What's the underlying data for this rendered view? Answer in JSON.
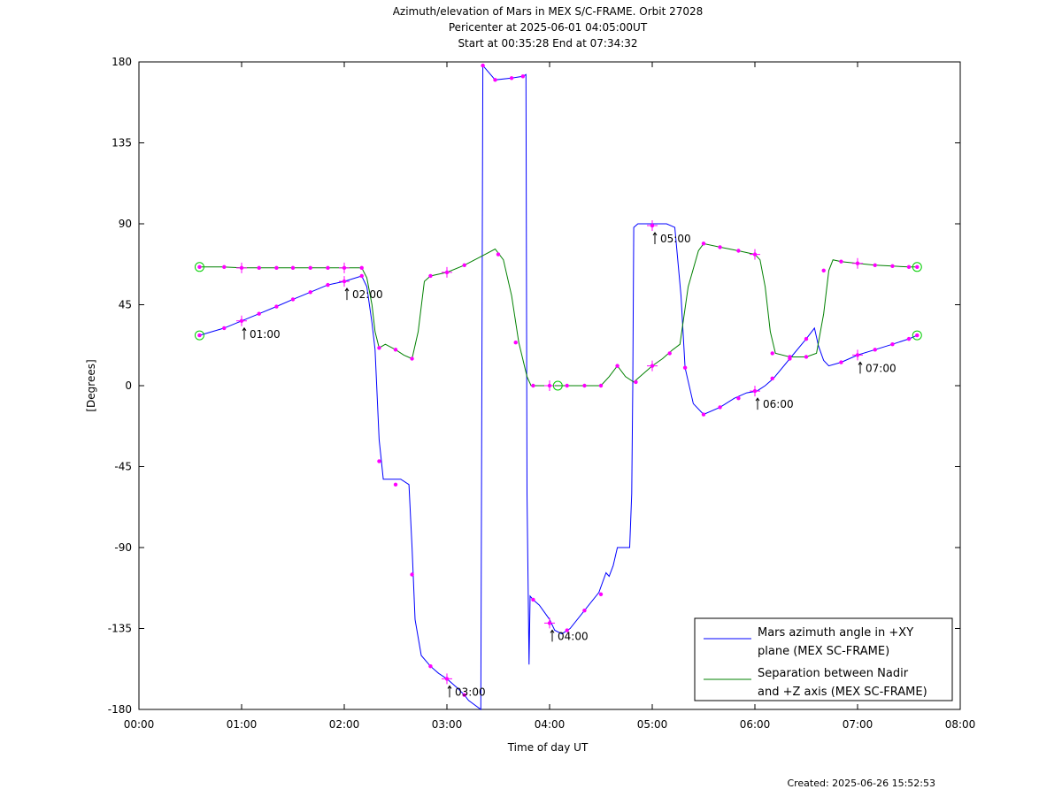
{
  "chart_data": {
    "type": "line",
    "title_lines": [
      "Azimuth/elevation of Mars in MEX S/C-FRAME.  Orbit 27028",
      "Pericenter at 2025-06-01 04:05:00UT",
      "Start at 00:35:28 End at 07:34:32"
    ],
    "xlabel": "Time of day UT",
    "ylabel": "[Degrees]",
    "xlim": [
      0,
      8
    ],
    "ylim": [
      -180,
      180
    ],
    "x_ticks": [
      {
        "v": 0,
        "label": "00:00"
      },
      {
        "v": 1,
        "label": "01:00"
      },
      {
        "v": 2,
        "label": "02:00"
      },
      {
        "v": 3,
        "label": "03:00"
      },
      {
        "v": 4,
        "label": "04:00"
      },
      {
        "v": 5,
        "label": "05:00"
      },
      {
        "v": 6,
        "label": "06:00"
      },
      {
        "v": 7,
        "label": "07:00"
      },
      {
        "v": 8,
        "label": "08:00"
      }
    ],
    "y_ticks": [
      {
        "v": 180,
        "label": "180"
      },
      {
        "v": 135,
        "label": "135"
      },
      {
        "v": 90,
        "label": "90"
      },
      {
        "v": 45,
        "label": "45"
      },
      {
        "v": 0,
        "label": "0"
      },
      {
        "v": -45,
        "label": "-45"
      },
      {
        "v": -90,
        "label": "-90"
      },
      {
        "v": -135,
        "label": "-135"
      },
      {
        "v": -180,
        "label": "-180"
      }
    ],
    "legend_position": "bottom-right",
    "series": [
      {
        "name": "Mars azimuth angle in +XY plane (MEX SC-FRAME)",
        "legend_lines": [
          "Mars azimuth angle in +XY",
          "plane (MEX SC-FRAME)"
        ],
        "color": "#0000ff",
        "points": [
          [
            0.59,
            28
          ],
          [
            0.83,
            32
          ],
          [
            1.0,
            36
          ],
          [
            1.17,
            40
          ],
          [
            1.34,
            44
          ],
          [
            1.5,
            48
          ],
          [
            1.67,
            52
          ],
          [
            1.84,
            56
          ],
          [
            2.0,
            58
          ],
          [
            2.17,
            61
          ],
          [
            2.22,
            55
          ],
          [
            2.27,
            35
          ],
          [
            2.3,
            20
          ],
          [
            2.34,
            -30
          ],
          [
            2.38,
            -52
          ],
          [
            2.55,
            -52
          ],
          [
            2.63,
            -55
          ],
          [
            2.66,
            -90
          ],
          [
            2.69,
            -130
          ],
          [
            2.75,
            -150
          ],
          [
            2.84,
            -156
          ],
          [
            2.92,
            -160
          ],
          [
            3.0,
            -163
          ],
          [
            3.1,
            -168
          ],
          [
            3.17,
            -172
          ],
          [
            3.21,
            -175
          ],
          [
            3.33,
            -180
          ],
          [
            3.35,
            178
          ],
          [
            3.47,
            170
          ],
          [
            3.63,
            171
          ],
          [
            3.74,
            172
          ],
          [
            3.77,
            173
          ],
          [
            3.78,
            -60
          ],
          [
            3.8,
            -155
          ],
          [
            3.81,
            -117
          ],
          [
            3.84,
            -119
          ],
          [
            3.9,
            -122
          ],
          [
            4.0,
            -130
          ],
          [
            4.05,
            -136
          ],
          [
            4.12,
            -138
          ],
          [
            4.2,
            -135
          ],
          [
            4.34,
            -125
          ],
          [
            4.48,
            -115
          ],
          [
            4.55,
            -104
          ],
          [
            4.58,
            -106
          ],
          [
            4.62,
            -100
          ],
          [
            4.66,
            -90
          ],
          [
            4.78,
            -90
          ],
          [
            4.8,
            -60
          ],
          [
            4.81,
            0
          ],
          [
            4.82,
            88
          ],
          [
            4.86,
            90
          ],
          [
            5.0,
            90
          ],
          [
            5.14,
            90
          ],
          [
            5.22,
            88
          ],
          [
            5.28,
            50
          ],
          [
            5.32,
            10
          ],
          [
            5.4,
            -10
          ],
          [
            5.5,
            -16
          ],
          [
            5.66,
            -12
          ],
          [
            5.8,
            -7
          ],
          [
            5.92,
            -4
          ],
          [
            6.02,
            -3
          ],
          [
            6.1,
            0
          ],
          [
            6.18,
            4
          ],
          [
            6.34,
            15
          ],
          [
            6.5,
            26
          ],
          [
            6.58,
            32
          ],
          [
            6.62,
            22
          ],
          [
            6.67,
            14
          ],
          [
            6.72,
            11
          ],
          [
            6.84,
            13
          ],
          [
            7.0,
            17
          ],
          [
            7.17,
            20
          ],
          [
            7.34,
            23
          ],
          [
            7.5,
            26
          ],
          [
            7.58,
            28
          ]
        ],
        "markers": [
          [
            0.83,
            32
          ],
          [
            1.17,
            40
          ],
          [
            1.34,
            44
          ],
          [
            1.5,
            48
          ],
          [
            1.67,
            52
          ],
          [
            1.84,
            56
          ],
          [
            2.17,
            61
          ],
          [
            2.34,
            -42
          ],
          [
            2.5,
            -55
          ],
          [
            2.66,
            -105
          ],
          [
            2.84,
            -156
          ],
          [
            3.17,
            -172
          ],
          [
            3.35,
            178
          ],
          [
            3.47,
            170
          ],
          [
            3.63,
            171
          ],
          [
            3.74,
            172
          ],
          [
            3.84,
            -119
          ],
          [
            4.17,
            -136
          ],
          [
            4.34,
            -125
          ],
          [
            4.5,
            -116
          ],
          [
            5.32,
            10
          ],
          [
            5.5,
            -16
          ],
          [
            5.66,
            -12
          ],
          [
            5.84,
            -7
          ],
          [
            6.17,
            4
          ],
          [
            6.34,
            15
          ],
          [
            6.5,
            26
          ],
          [
            6.84,
            13
          ],
          [
            7.17,
            20
          ],
          [
            7.34,
            23
          ],
          [
            7.5,
            26
          ]
        ],
        "hour_markers": [
          [
            1,
            36
          ],
          [
            2,
            58
          ],
          [
            3,
            -163
          ],
          [
            4,
            -132
          ],
          [
            5,
            89
          ],
          [
            6,
            -3
          ],
          [
            7,
            17
          ]
        ]
      },
      {
        "name": "Separation between Nadir and +Z axis (MEX SC-FRAME)",
        "legend_lines": [
          "Separation between Nadir",
          "and +Z axis (MEX SC-FRAME)"
        ],
        "color": "#008000",
        "points": [
          [
            0.59,
            66
          ],
          [
            0.83,
            66
          ],
          [
            1.0,
            65.5
          ],
          [
            1.34,
            65.5
          ],
          [
            1.67,
            65.5
          ],
          [
            2.0,
            65.5
          ],
          [
            2.17,
            65.5
          ],
          [
            2.22,
            60
          ],
          [
            2.27,
            45
          ],
          [
            2.3,
            30
          ],
          [
            2.34,
            21
          ],
          [
            2.4,
            23
          ],
          [
            2.5,
            20
          ],
          [
            2.58,
            17
          ],
          [
            2.66,
            15
          ],
          [
            2.72,
            30
          ],
          [
            2.78,
            58
          ],
          [
            2.84,
            61
          ],
          [
            3.0,
            63
          ],
          [
            3.17,
            67
          ],
          [
            3.34,
            72
          ],
          [
            3.47,
            76
          ],
          [
            3.55,
            70
          ],
          [
            3.63,
            50
          ],
          [
            3.7,
            24
          ],
          [
            3.78,
            5
          ],
          [
            3.82,
            0
          ],
          [
            4.0,
            0
          ],
          [
            4.2,
            0
          ],
          [
            4.4,
            0
          ],
          [
            4.5,
            0
          ],
          [
            4.58,
            5
          ],
          [
            4.66,
            11
          ],
          [
            4.74,
            5
          ],
          [
            4.82,
            2
          ],
          [
            4.9,
            6
          ],
          [
            5.0,
            11
          ],
          [
            5.1,
            15
          ],
          [
            5.2,
            20
          ],
          [
            5.27,
            23
          ],
          [
            5.35,
            55
          ],
          [
            5.45,
            75
          ],
          [
            5.5,
            79
          ],
          [
            5.66,
            77
          ],
          [
            5.84,
            75
          ],
          [
            6.0,
            73
          ],
          [
            6.05,
            70
          ],
          [
            6.1,
            55
          ],
          [
            6.15,
            30
          ],
          [
            6.2,
            18
          ],
          [
            6.34,
            16
          ],
          [
            6.5,
            16
          ],
          [
            6.6,
            18
          ],
          [
            6.67,
            40
          ],
          [
            6.72,
            64
          ],
          [
            6.76,
            70
          ],
          [
            6.84,
            69
          ],
          [
            7.0,
            68
          ],
          [
            7.17,
            67
          ],
          [
            7.34,
            66.5
          ],
          [
            7.5,
            66
          ],
          [
            7.58,
            66
          ]
        ],
        "markers": [
          [
            0.83,
            66
          ],
          [
            1.17,
            65.5
          ],
          [
            1.34,
            65.5
          ],
          [
            1.5,
            65.5
          ],
          [
            1.67,
            65.5
          ],
          [
            1.84,
            65.5
          ],
          [
            2.17,
            65.5
          ],
          [
            2.34,
            21
          ],
          [
            2.5,
            20
          ],
          [
            2.66,
            15
          ],
          [
            2.84,
            61
          ],
          [
            3.17,
            67
          ],
          [
            3.5,
            73
          ],
          [
            3.67,
            24
          ],
          [
            3.84,
            0
          ],
          [
            4.17,
            0
          ],
          [
            4.34,
            0
          ],
          [
            4.5,
            0
          ],
          [
            4.66,
            11
          ],
          [
            4.84,
            2
          ],
          [
            5.17,
            18
          ],
          [
            5.5,
            79
          ],
          [
            5.66,
            77
          ],
          [
            5.84,
            75
          ],
          [
            6.17,
            18
          ],
          [
            6.34,
            16
          ],
          [
            6.5,
            16
          ],
          [
            6.67,
            64
          ],
          [
            6.84,
            69
          ],
          [
            7.17,
            67
          ],
          [
            7.34,
            66.5
          ],
          [
            7.5,
            66
          ]
        ],
        "hour_markers": [
          [
            1,
            65.5
          ],
          [
            2,
            65.5
          ],
          [
            3,
            63
          ],
          [
            4,
            0
          ],
          [
            5,
            11
          ],
          [
            6,
            73
          ],
          [
            7,
            68
          ]
        ]
      }
    ],
    "start_points": [
      [
        0.59,
        28
      ],
      [
        0.59,
        66
      ]
    ],
    "end_points": [
      [
        7.58,
        28
      ],
      [
        7.58,
        66
      ]
    ],
    "pericenter_point": [
      4.08,
      0
    ],
    "hour_labels": [
      {
        "x": 1,
        "y": 36,
        "label": "01:00"
      },
      {
        "x": 2,
        "y": 58,
        "label": "02:00"
      },
      {
        "x": 3,
        "y": -163,
        "label": "03:00"
      },
      {
        "x": 4,
        "y": -132,
        "label": "04:00"
      },
      {
        "x": 5,
        "y": 89,
        "label": "05:00"
      },
      {
        "x": 6,
        "y": -3,
        "label": "06:00"
      },
      {
        "x": 7,
        "y": 17,
        "label": "07:00"
      }
    ]
  },
  "created_text": "Created: 2025-06-26 15:52:53"
}
